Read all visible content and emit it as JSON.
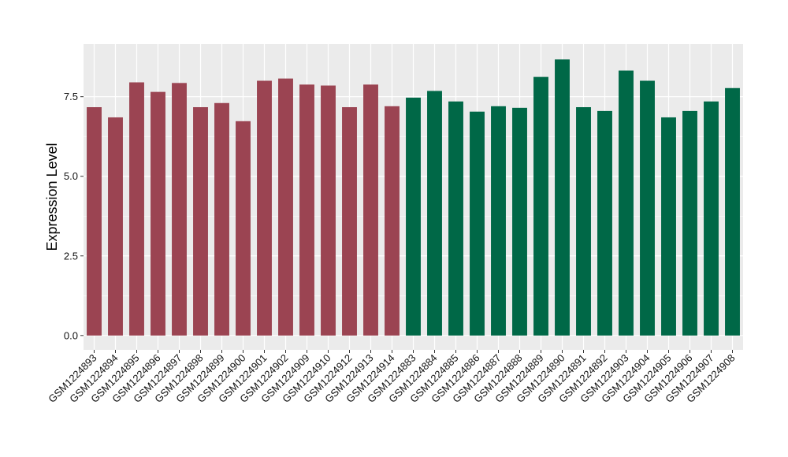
{
  "chart_data": {
    "type": "bar",
    "ylabel": "Expression Level",
    "xlabel": "",
    "ylim": [
      -0.45,
      9.15
    ],
    "yticks": [
      0.0,
      2.5,
      5.0,
      7.5
    ],
    "ytick_labels": [
      "0.0",
      "2.5",
      "5.0",
      "7.5"
    ],
    "grid": true,
    "colors": {
      "group1": "#9B4452",
      "group2": "#006847",
      "panel": "#EBEBEB",
      "grid": "#FFFFFF"
    },
    "categories": [
      "GSM1224893",
      "GSM1224894",
      "GSM1224895",
      "GSM1224896",
      "GSM1224897",
      "GSM1224898",
      "GSM1224899",
      "GSM1224900",
      "GSM1224901",
      "GSM1224902",
      "GSM1224909",
      "GSM1224910",
      "GSM1224912",
      "GSM1224913",
      "GSM1224914",
      "GSM1224883",
      "GSM1224884",
      "GSM1224885",
      "GSM1224886",
      "GSM1224887",
      "GSM1224888",
      "GSM1224889",
      "GSM1224890",
      "GSM1224891",
      "GSM1224892",
      "GSM1224903",
      "GSM1224904",
      "GSM1224905",
      "GSM1224906",
      "GSM1224907",
      "GSM1224908"
    ],
    "values": [
      7.17,
      6.85,
      7.95,
      7.65,
      7.93,
      7.17,
      7.3,
      6.73,
      8.0,
      8.07,
      7.88,
      7.85,
      7.17,
      7.88,
      7.2,
      7.47,
      7.68,
      7.35,
      7.03,
      7.2,
      7.15,
      8.12,
      8.67,
      7.17,
      7.05,
      8.32,
      8.0,
      6.85,
      7.05,
      7.35,
      7.77
    ],
    "groups": [
      1,
      1,
      1,
      1,
      1,
      1,
      1,
      1,
      1,
      1,
      1,
      1,
      1,
      1,
      1,
      2,
      2,
      2,
      2,
      2,
      2,
      2,
      2,
      2,
      2,
      2,
      2,
      2,
      2,
      2,
      2
    ]
  }
}
